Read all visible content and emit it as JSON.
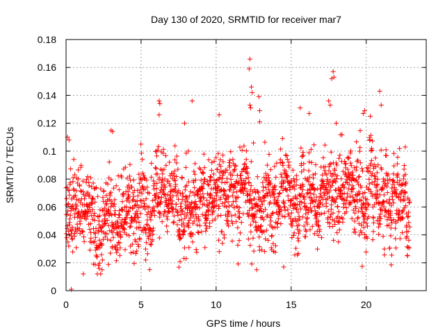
{
  "chart_data": {
    "type": "scatter",
    "title": "Day 130 of 2020, SRMTID for receiver mar7",
    "xlabel": "GPS time / hours",
    "ylabel": "SRMTID / TECUs",
    "xlim": [
      0,
      24
    ],
    "ylim": [
      0,
      0.18
    ],
    "xticks": [
      0,
      5,
      10,
      15,
      20
    ],
    "xtick_labels": [
      "0",
      "5",
      "10",
      "15",
      "20"
    ],
    "yticks": [
      0,
      0.02,
      0.04,
      0.06,
      0.08,
      0.1,
      0.12,
      0.14,
      0.16,
      0.18
    ],
    "ytick_labels": [
      "0",
      "0.02",
      "0.04",
      "0.06",
      "0.08",
      "0.1",
      "0.12",
      "0.14",
      "0.16",
      "0.18"
    ],
    "grid": true,
    "marker": "+",
    "color": "#ff0000",
    "series": [
      {
        "name": "mar7",
        "x_start": 0.0,
        "x_end": 22.9,
        "n_points": 2000,
        "baseline": [
          {
            "x": 0,
            "y": 0.062
          },
          {
            "x": 1,
            "y": 0.058
          },
          {
            "x": 2,
            "y": 0.054
          },
          {
            "x": 3,
            "y": 0.057
          },
          {
            "x": 4,
            "y": 0.055
          },
          {
            "x": 5,
            "y": 0.058
          },
          {
            "x": 6,
            "y": 0.063
          },
          {
            "x": 7,
            "y": 0.066
          },
          {
            "x": 8,
            "y": 0.063
          },
          {
            "x": 9,
            "y": 0.064
          },
          {
            "x": 10,
            "y": 0.068
          },
          {
            "x": 11,
            "y": 0.069
          },
          {
            "x": 12,
            "y": 0.067
          },
          {
            "x": 13,
            "y": 0.064
          },
          {
            "x": 14,
            "y": 0.065
          },
          {
            "x": 15,
            "y": 0.068
          },
          {
            "x": 16,
            "y": 0.066
          },
          {
            "x": 17,
            "y": 0.068
          },
          {
            "x": 18,
            "y": 0.071
          },
          {
            "x": 19,
            "y": 0.072
          },
          {
            "x": 20,
            "y": 0.07
          },
          {
            "x": 21,
            "y": 0.069
          },
          {
            "x": 22,
            "y": 0.064
          },
          {
            "x": 23,
            "y": 0.06
          }
        ],
        "spread": 0.017,
        "outliers": [
          {
            "x": 0.35,
            "y": 0.001
          },
          {
            "x": 0.1,
            "y": 0.11
          },
          {
            "x": 0.2,
            "y": 0.108
          },
          {
            "x": 3.0,
            "y": 0.115
          },
          {
            "x": 3.1,
            "y": 0.114
          },
          {
            "x": 6.2,
            "y": 0.136
          },
          {
            "x": 6.25,
            "y": 0.134
          },
          {
            "x": 6.2,
            "y": 0.126
          },
          {
            "x": 8.4,
            "y": 0.136
          },
          {
            "x": 7.9,
            "y": 0.12
          },
          {
            "x": 10.2,
            "y": 0.126
          },
          {
            "x": 12.25,
            "y": 0.166
          },
          {
            "x": 12.2,
            "y": 0.159
          },
          {
            "x": 12.35,
            "y": 0.146
          },
          {
            "x": 12.4,
            "y": 0.142
          },
          {
            "x": 12.25,
            "y": 0.133
          },
          {
            "x": 12.3,
            "y": 0.131
          },
          {
            "x": 12.85,
            "y": 0.139
          },
          {
            "x": 12.9,
            "y": 0.129
          },
          {
            "x": 12.9,
            "y": 0.121
          },
          {
            "x": 12.7,
            "y": 0.015
          },
          {
            "x": 14.5,
            "y": 0.017
          },
          {
            "x": 15.6,
            "y": 0.131
          },
          {
            "x": 16.2,
            "y": 0.127
          },
          {
            "x": 17.5,
            "y": 0.136
          },
          {
            "x": 17.6,
            "y": 0.133
          },
          {
            "x": 17.8,
            "y": 0.157
          },
          {
            "x": 17.7,
            "y": 0.152
          },
          {
            "x": 17.85,
            "y": 0.153
          },
          {
            "x": 18.0,
            "y": 0.12
          },
          {
            "x": 19.8,
            "y": 0.127
          },
          {
            "x": 19.9,
            "y": 0.129
          },
          {
            "x": 20.9,
            "y": 0.143
          },
          {
            "x": 21.0,
            "y": 0.133
          },
          {
            "x": 2.2,
            "y": 0.016
          },
          {
            "x": 2.4,
            "y": 0.015
          },
          {
            "x": 5.3,
            "y": 0.022
          },
          {
            "x": 8.0,
            "y": 0.023
          },
          {
            "x": 22.6,
            "y": 0.103
          }
        ]
      }
    ]
  }
}
